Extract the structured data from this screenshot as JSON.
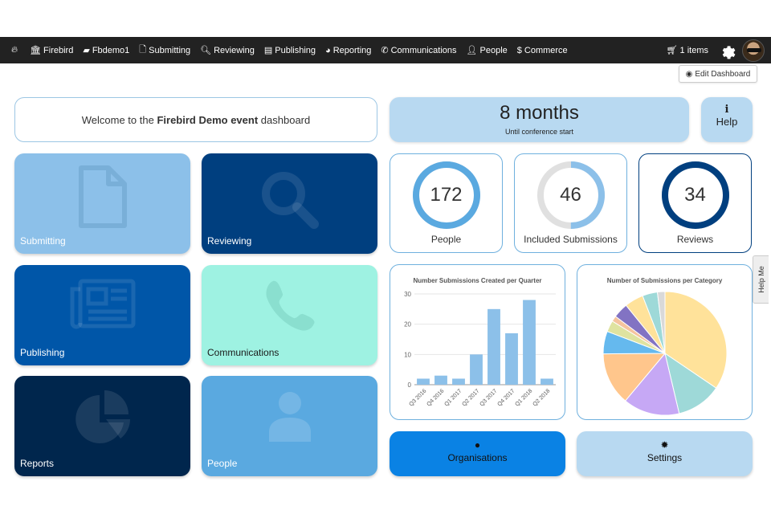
{
  "navbar": {
    "logo_icon": "flame-icon",
    "items": [
      {
        "icon": "bank-icon",
        "label": "Firebird"
      },
      {
        "icon": "book-icon",
        "label": "Fbdemo1"
      },
      {
        "icon": "file-icon",
        "label": "Submitting"
      },
      {
        "icon": "search-icon",
        "label": "Reviewing"
      },
      {
        "icon": "newspaper-icon",
        "label": "Publishing"
      },
      {
        "icon": "pie-chart-icon",
        "label": "Reporting"
      },
      {
        "icon": "phone-icon",
        "label": "Communications"
      },
      {
        "icon": "user-icon",
        "label": "People"
      },
      {
        "icon": "dollar-icon",
        "label": "Commerce"
      }
    ],
    "cart_label": "1 items"
  },
  "edit_dashboard_label": "Edit Dashboard",
  "welcome": {
    "prefix": "Welcome to the ",
    "event": "Firebird Demo event",
    "suffix": " dashboard"
  },
  "countdown": {
    "value": "8 months",
    "caption": "Until conference start"
  },
  "help": {
    "icon": "i",
    "label": "Help"
  },
  "tiles": [
    {
      "label": "Submitting",
      "color": "#8cc0e9"
    },
    {
      "label": "Reviewing",
      "color": "#003f7f"
    },
    {
      "label": "Publishing",
      "color": "#0056a8"
    },
    {
      "label": "Communications",
      "color": "#9ef2e2"
    },
    {
      "label": "Reports",
      "color": "#00264d"
    },
    {
      "label": "People",
      "color": "#5aa9e0"
    }
  ],
  "stats": [
    {
      "value": "172",
      "label": "People",
      "fraction": 1.0,
      "color": "#5aa9e0"
    },
    {
      "value": "46",
      "label": "Included Submissions",
      "fraction": 0.5,
      "color": "#8cc0e9"
    },
    {
      "value": "34",
      "label": "Reviews",
      "fraction": 1.0,
      "color": "#003f7f"
    }
  ],
  "chart_data": [
    {
      "type": "bar",
      "title": "Number Submissions Created per Quarter",
      "categories": [
        "Q3 2016",
        "Q4 2016",
        "Q1 2017",
        "Q2 2017",
        "Q3 2017",
        "Q4 2017",
        "Q1 2018",
        "Q2 2018"
      ],
      "values": [
        2,
        3,
        2,
        10,
        25,
        17,
        28,
        2
      ],
      "ylim": [
        0,
        30
      ],
      "yticks": [
        "0",
        "10",
        "20",
        "30"
      ],
      "color": "#8cc0e9"
    },
    {
      "type": "pie",
      "title": "Number of Submissions per Category",
      "values": [
        35,
        12,
        15,
        14,
        6,
        3,
        1.5,
        4,
        5,
        4,
        2
      ],
      "colors": [
        "#ffe29a",
        "#9ed9d8",
        "#c6a8f5",
        "#ffc68c",
        "#65b9ee",
        "#dfe3a0",
        "#f5c49e",
        "#8273c3",
        "#ffe29a",
        "#9ed9d8",
        "#d9d9d9"
      ]
    }
  ],
  "actions": [
    {
      "label": "Organisations",
      "icon": "globe-icon"
    },
    {
      "label": "Settings",
      "icon": "gear-icon"
    }
  ],
  "help_me_label": "Help Me"
}
